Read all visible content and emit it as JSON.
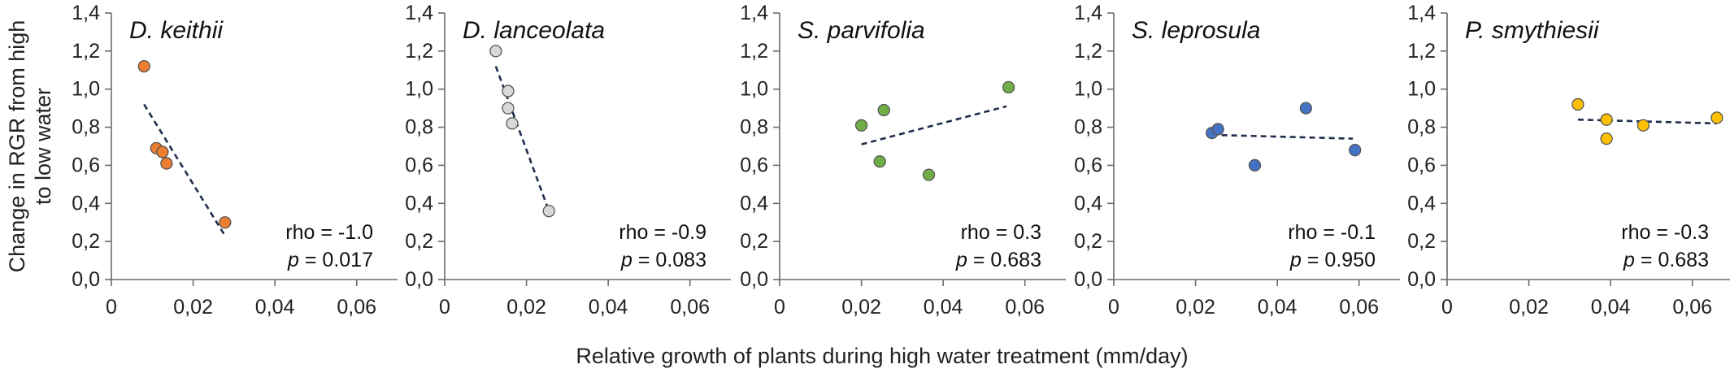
{
  "chart_data": {
    "type": "scatter",
    "ylabel_lines": [
      "Change in RGR from high",
      "to low water"
    ],
    "xlabel": "Relative growth of plants during  high water treatment (mm/day)",
    "xlim": [
      0,
      0.07
    ],
    "ylim": [
      0,
      1.4
    ],
    "x_ticks": [
      "0",
      "0,02",
      "0,04",
      "0,06"
    ],
    "x_tick_values": [
      0,
      0.02,
      0.04,
      0.06
    ],
    "y_ticks": [
      "0,0",
      "0,2",
      "0,4",
      "0,6",
      "0,8",
      "1,0",
      "1,2",
      "1,4"
    ],
    "y_tick_values": [
      0,
      0.2,
      0.4,
      0.6,
      0.8,
      1.0,
      1.2,
      1.4
    ],
    "trendline_style": "dashed",
    "trendline_color": "#1f2d4d",
    "panels": [
      {
        "title": "D. keithii",
        "color": "#ed7d31",
        "points": [
          {
            "x": 0.008,
            "y": 1.12
          },
          {
            "x": 0.011,
            "y": 0.69
          },
          {
            "x": 0.0125,
            "y": 0.67
          },
          {
            "x": 0.0135,
            "y": 0.61
          },
          {
            "x": 0.0278,
            "y": 0.3
          }
        ],
        "trend": [
          [
            0.008,
            0.92
          ],
          [
            0.0275,
            0.24
          ]
        ],
        "rho": "rho = -1.0",
        "p_label": "p",
        "p_value": " = 0.017"
      },
      {
        "title": "D. lanceolata",
        "color": "#d9d9d9",
        "points": [
          {
            "x": 0.0125,
            "y": 1.2
          },
          {
            "x": 0.0155,
            "y": 0.99
          },
          {
            "x": 0.0155,
            "y": 0.9
          },
          {
            "x": 0.0165,
            "y": 0.82
          },
          {
            "x": 0.0255,
            "y": 0.36
          }
        ],
        "trend": [
          [
            0.0125,
            1.12
          ],
          [
            0.0255,
            0.36
          ]
        ],
        "rho": "rho = -0.9",
        "p_label": "p",
        "p_value": " = 0.083"
      },
      {
        "title": "S. parvifolia",
        "color": "#70ad47",
        "points": [
          {
            "x": 0.02,
            "y": 0.81
          },
          {
            "x": 0.0255,
            "y": 0.89
          },
          {
            "x": 0.0245,
            "y": 0.62
          },
          {
            "x": 0.0365,
            "y": 0.55
          },
          {
            "x": 0.056,
            "y": 1.01
          }
        ],
        "trend": [
          [
            0.02,
            0.71
          ],
          [
            0.0555,
            0.91
          ]
        ],
        "rho": "rho = 0.3",
        "p_label": "p",
        "p_value": " = 0.683"
      },
      {
        "title": "S. leprosula",
        "color": "#4472c4",
        "points": [
          {
            "x": 0.024,
            "y": 0.77
          },
          {
            "x": 0.0255,
            "y": 0.79
          },
          {
            "x": 0.0345,
            "y": 0.6
          },
          {
            "x": 0.047,
            "y": 0.9
          },
          {
            "x": 0.059,
            "y": 0.68
          }
        ],
        "trend": [
          [
            0.024,
            0.76
          ],
          [
            0.0585,
            0.74
          ]
        ],
        "rho": "rho = -0.1",
        "p_label": "p",
        "p_value": " = 0.950"
      },
      {
        "title": "P. smythiesii",
        "color": "#ffc000",
        "points": [
          {
            "x": 0.032,
            "y": 0.92
          },
          {
            "x": 0.039,
            "y": 0.84
          },
          {
            "x": 0.039,
            "y": 0.74
          },
          {
            "x": 0.048,
            "y": 0.81
          },
          {
            "x": 0.066,
            "y": 0.85
          }
        ],
        "trend": [
          [
            0.032,
            0.84
          ],
          [
            0.066,
            0.82
          ]
        ],
        "rho": "rho = -0.3",
        "p_label": "p",
        "p_value": " = 0.683"
      }
    ]
  }
}
